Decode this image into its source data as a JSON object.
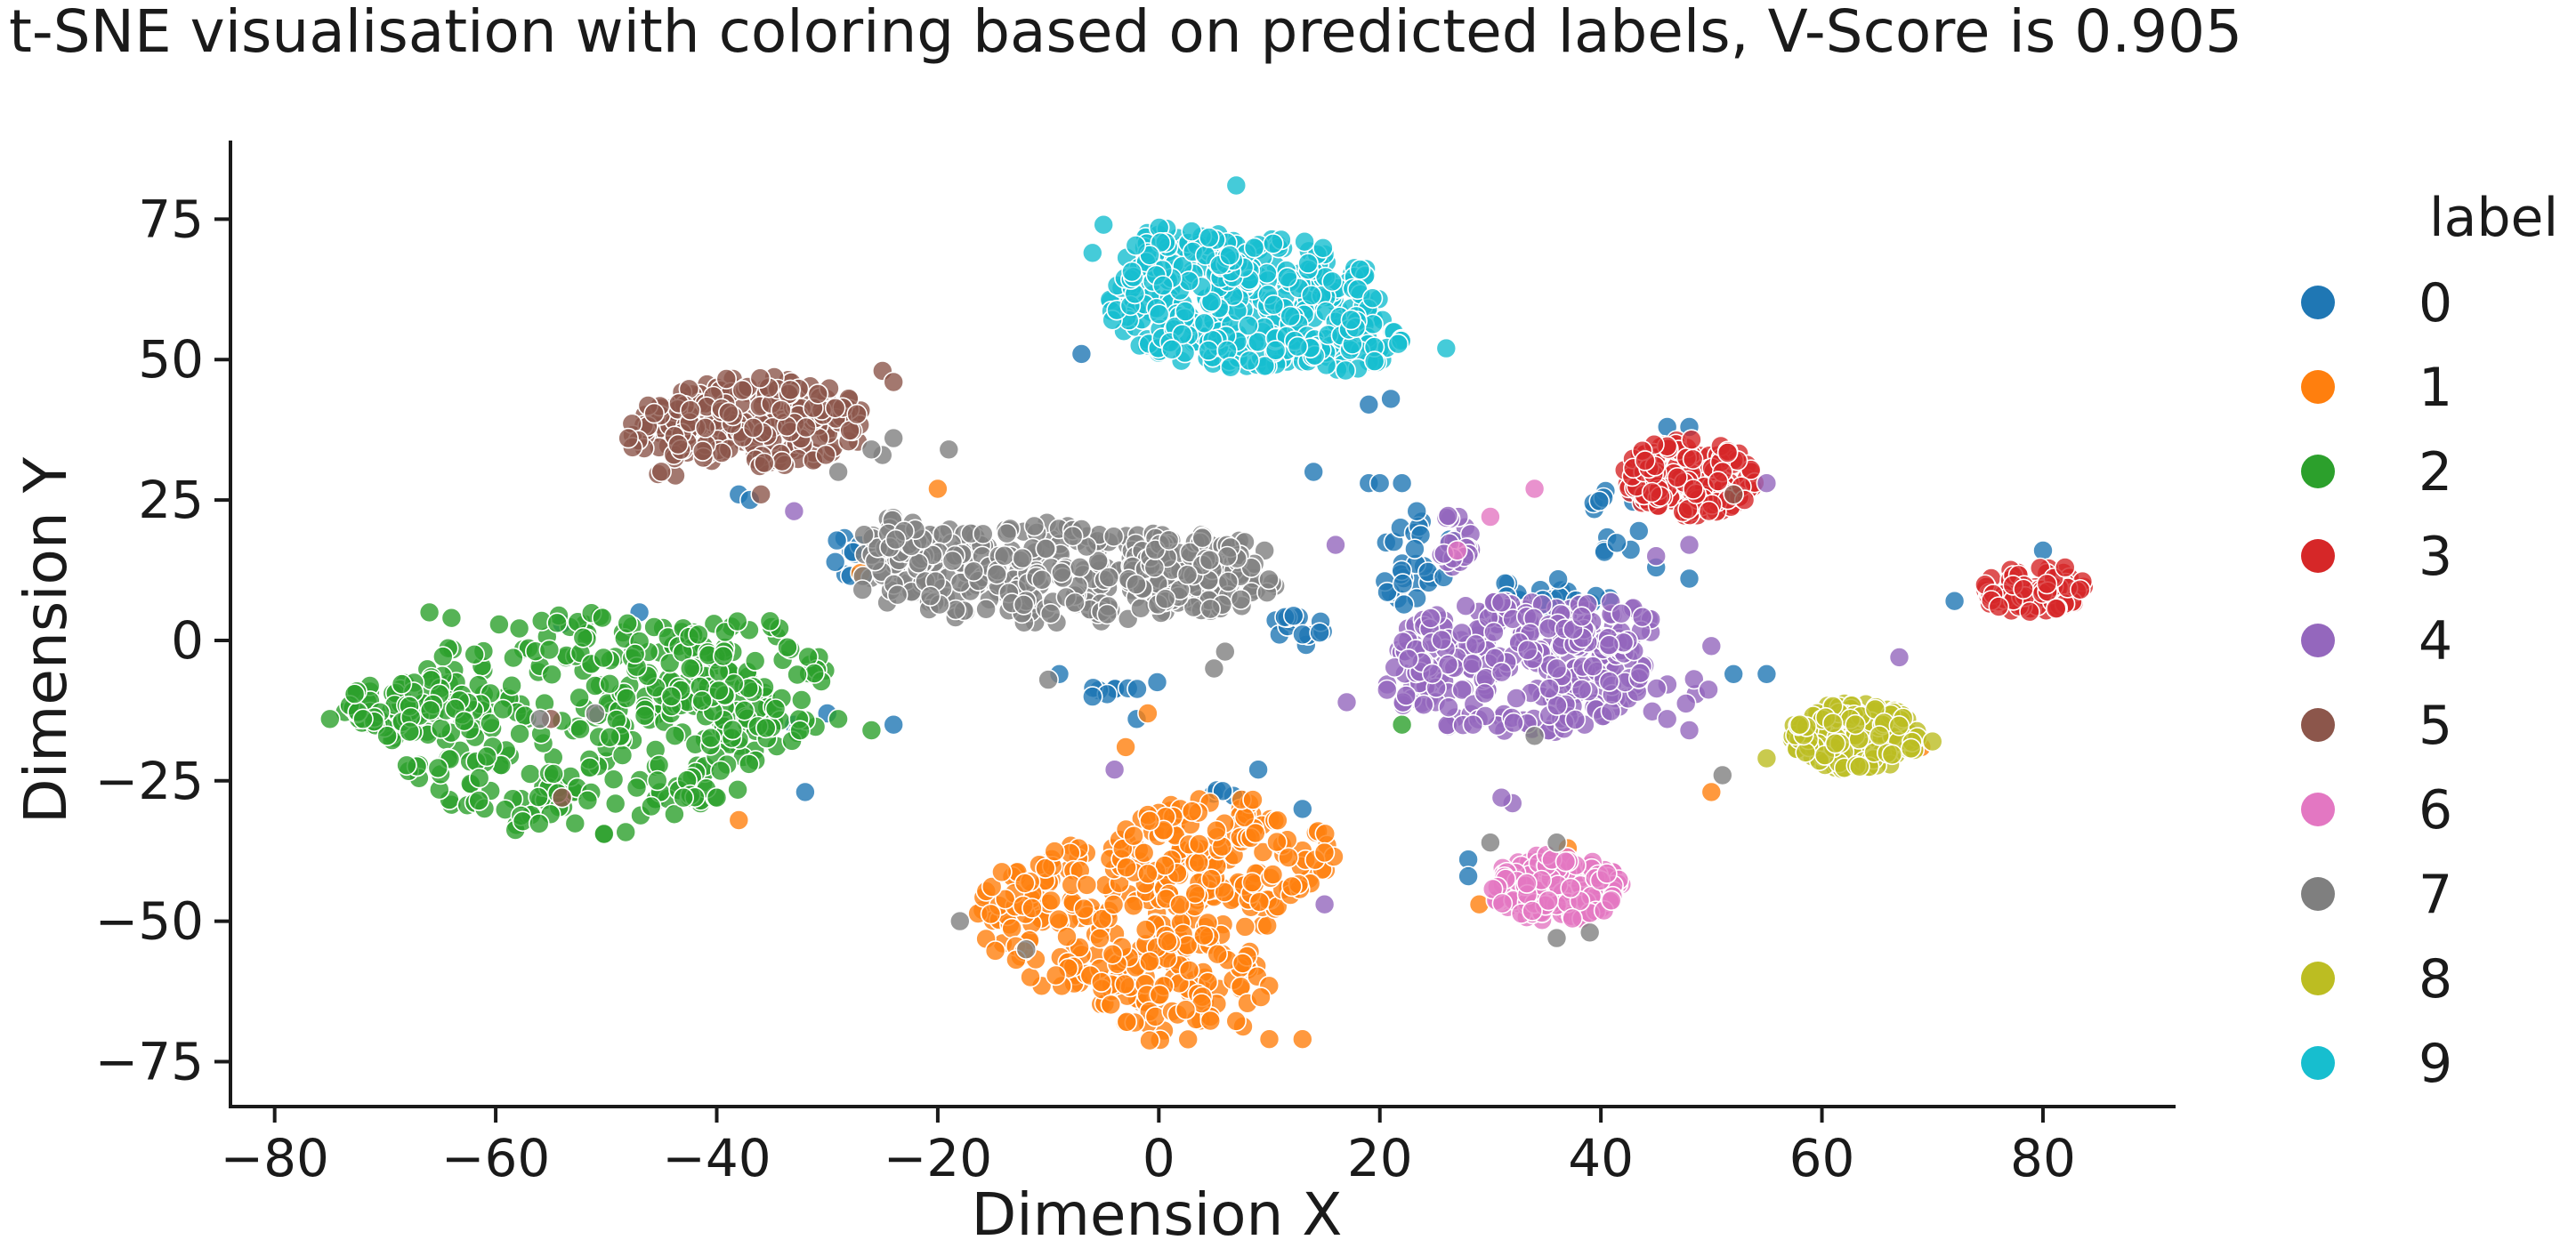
{
  "chart_data": {
    "type": "scatter",
    "title": "t-SNE visualisation with coloring based on predicted labels, V-Score is 0.905",
    "xlabel": "Dimension X",
    "ylabel": "Dimension Y",
    "xlim": [
      -84,
      92
    ],
    "ylim": [
      -83,
      89
    ],
    "xticks": [
      -80,
      -60,
      -40,
      -20,
      0,
      20,
      40,
      60,
      80
    ],
    "xtick_labels": [
      "−80",
      "−60",
      "−40",
      "−20",
      "0",
      "20",
      "40",
      "60",
      "80"
    ],
    "yticks": [
      -75,
      -50,
      -25,
      0,
      25,
      50,
      75
    ],
    "ytick_labels": [
      "−75",
      "−50",
      "−25",
      "0",
      "25",
      "50",
      "75"
    ],
    "grid": false,
    "legend": {
      "title": "label",
      "placement": "right",
      "entries": [
        "0",
        "1",
        "2",
        "3",
        "4",
        "5",
        "6",
        "7",
        "8",
        "9"
      ]
    },
    "marker_alpha": 0.8,
    "series": [
      {
        "name": "0",
        "color": "#1f77b4",
        "clusters": [
          {
            "cx": 24,
            "cy": 14,
            "rx": 4,
            "ry": 10,
            "n": 30
          },
          {
            "cx": 13,
            "cy": 2,
            "rx": 3,
            "ry": 3,
            "n": 15
          },
          {
            "cx": 35,
            "cy": 8,
            "rx": 6,
            "ry": 3,
            "n": 25
          },
          {
            "cx": -27,
            "cy": 15,
            "rx": 3,
            "ry": 4,
            "n": 10
          },
          {
            "cx": 42,
            "cy": 23,
            "rx": 3,
            "ry": 10,
            "n": 15
          },
          {
            "cx": -3,
            "cy": -8,
            "rx": 3,
            "ry": 3,
            "n": 8
          },
          {
            "cx": 6,
            "cy": -27,
            "rx": 2,
            "ry": 2,
            "n": 5
          }
        ],
        "points": [
          [
            -7,
            51
          ],
          [
            19,
            42
          ],
          [
            21,
            43
          ],
          [
            19,
            28
          ],
          [
            20,
            28
          ],
          [
            14,
            30
          ],
          [
            -32,
            -27
          ],
          [
            -24,
            -15
          ],
          [
            -47,
            5
          ],
          [
            -54,
            3
          ],
          [
            -30,
            -13
          ],
          [
            -33,
            -15
          ],
          [
            80,
            16
          ],
          [
            72,
            7
          ],
          [
            48,
            11
          ],
          [
            55,
            -6
          ],
          [
            52,
            -6
          ],
          [
            28,
            -39
          ],
          [
            28,
            -42
          ],
          [
            13,
            -30
          ],
          [
            9,
            -23
          ],
          [
            -38,
            26
          ],
          [
            -37,
            25
          ],
          [
            22,
            28
          ],
          [
            46,
            38
          ],
          [
            48,
            38
          ],
          [
            45,
            13
          ],
          [
            -6,
            -10
          ],
          [
            -9,
            -6
          ],
          [
            -2,
            -14
          ]
        ]
      },
      {
        "name": "1",
        "color": "#ff7f0e",
        "clusters": [
          {
            "cx": -3,
            "cy": -50,
            "rx": 14,
            "ry": 15,
            "n": 220
          },
          {
            "cx": 6,
            "cy": -38,
            "rx": 10,
            "ry": 10,
            "n": 120
          },
          {
            "cx": 2,
            "cy": -62,
            "rx": 8,
            "ry": 10,
            "n": 80
          }
        ],
        "points": [
          [
            -20,
            27
          ],
          [
            -21,
            10
          ],
          [
            -3,
            -19
          ],
          [
            -1,
            -13
          ],
          [
            -38,
            -32
          ],
          [
            50,
            -27
          ],
          [
            29,
            -47
          ],
          [
            37,
            -37
          ],
          [
            69,
            -19
          ],
          [
            13,
            -71
          ],
          [
            10,
            -71
          ],
          [
            -27,
            12
          ]
        ]
      },
      {
        "name": "2",
        "color": "#2ca02c",
        "clusters": [
          {
            "cx": -52,
            "cy": -15,
            "rx": 18,
            "ry": 20,
            "n": 320
          },
          {
            "cx": -37,
            "cy": -8,
            "rx": 8,
            "ry": 12,
            "n": 80
          },
          {
            "cx": -68,
            "cy": -12,
            "rx": 6,
            "ry": 6,
            "n": 60
          }
        ],
        "points": [
          [
            -75,
            -14
          ],
          [
            -72,
            -14
          ],
          [
            -29,
            -14
          ],
          [
            -26,
            -16
          ],
          [
            -66,
            5
          ],
          [
            -64,
            4
          ],
          [
            22,
            -15
          ],
          [
            -40,
            -28
          ],
          [
            -43,
            -28
          ]
        ]
      },
      {
        "name": "3",
        "color": "#d62728",
        "clusters": [
          {
            "cx": 48,
            "cy": 29,
            "rx": 6,
            "ry": 7,
            "n": 180
          },
          {
            "cx": 79,
            "cy": 9,
            "rx": 5,
            "ry": 4,
            "n": 90
          }
        ],
        "points": [
          [
            44,
            32
          ],
          [
            53,
            25
          ],
          [
            82,
            13
          ],
          [
            76,
            6
          ]
        ]
      },
      {
        "name": "4",
        "color": "#9467bd",
        "clusters": [
          {
            "cx": 32,
            "cy": -5,
            "rx": 12,
            "ry": 12,
            "n": 260
          },
          {
            "cx": 40,
            "cy": 2,
            "rx": 5,
            "ry": 5,
            "n": 60
          },
          {
            "cx": 27,
            "cy": 18,
            "rx": 2,
            "ry": 5,
            "n": 20
          },
          {
            "cx": 45,
            "cy": -9,
            "rx": 5,
            "ry": 4,
            "n": 15
          }
        ],
        "points": [
          [
            16,
            17
          ],
          [
            17,
            -11
          ],
          [
            50,
            -1
          ],
          [
            46,
            -14
          ],
          [
            48,
            -16
          ],
          [
            32,
            -29
          ],
          [
            31,
            -28
          ],
          [
            15,
            -47
          ],
          [
            67,
            -3
          ],
          [
            55,
            28
          ],
          [
            -4,
            -23
          ],
          [
            45,
            15
          ],
          [
            48,
            17
          ],
          [
            -33,
            23
          ],
          [
            36,
            -5
          ]
        ]
      },
      {
        "name": "5",
        "color": "#8c564b",
        "clusters": [
          {
            "cx": -36,
            "cy": 39,
            "rx": 10,
            "ry": 8,
            "n": 210
          },
          {
            "cx": -44,
            "cy": 36,
            "rx": 4,
            "ry": 7,
            "n": 40
          }
        ],
        "points": [
          [
            -48,
            36
          ],
          [
            -25,
            48
          ],
          [
            -24,
            46
          ],
          [
            -55,
            -14
          ],
          [
            -54,
            -28
          ],
          [
            52,
            26
          ],
          [
            -36,
            26
          ]
        ]
      },
      {
        "name": "6",
        "color": "#e377c2",
        "clusters": [
          {
            "cx": 36,
            "cy": -44,
            "rx": 6,
            "ry": 6,
            "n": 190
          }
        ],
        "points": [
          [
            27,
            16
          ],
          [
            30,
            22
          ],
          [
            34,
            27
          ]
        ]
      },
      {
        "name": "7",
        "color": "#7f7f7f",
        "clusters": [
          {
            "cx": -10,
            "cy": 12,
            "rx": 18,
            "ry": 9,
            "n": 300
          },
          {
            "cx": 4,
            "cy": 12,
            "rx": 7,
            "ry": 7,
            "n": 110
          },
          {
            "cx": -24,
            "cy": 19,
            "rx": 3,
            "ry": 3,
            "n": 20
          }
        ],
        "points": [
          [
            -24,
            36
          ],
          [
            -25,
            33
          ],
          [
            -19,
            34
          ],
          [
            6,
            -2
          ],
          [
            5,
            -5
          ],
          [
            -10,
            -7
          ],
          [
            -18,
            -50
          ],
          [
            -12,
            -55
          ],
          [
            36,
            -53
          ],
          [
            39,
            -52
          ],
          [
            51,
            -24
          ],
          [
            34,
            -17
          ],
          [
            -26,
            34
          ],
          [
            -29,
            30
          ],
          [
            -51,
            -13
          ],
          [
            -56,
            -14
          ],
          [
            36,
            -36
          ],
          [
            30,
            -36
          ]
        ]
      },
      {
        "name": "8",
        "color": "#bcbd22",
        "clusters": [
          {
            "cx": 63,
            "cy": -17,
            "rx": 6,
            "ry": 6,
            "n": 190
          }
        ],
        "points": [
          [
            55,
            -21
          ],
          [
            58,
            -15
          ],
          [
            70,
            -18
          ]
        ]
      },
      {
        "name": "9",
        "color": "#17becf",
        "clusters": [
          {
            "cx": 8,
            "cy": 60,
            "rx": 13,
            "ry": 12,
            "n": 330
          },
          {
            "cx": 2,
            "cy": 68,
            "rx": 6,
            "ry": 6,
            "n": 60
          },
          {
            "cx": 17,
            "cy": 53,
            "rx": 5,
            "ry": 5,
            "n": 50
          }
        ],
        "points": [
          [
            7,
            81
          ],
          [
            -6,
            69
          ],
          [
            26,
            52
          ],
          [
            -5,
            74
          ]
        ]
      }
    ]
  }
}
